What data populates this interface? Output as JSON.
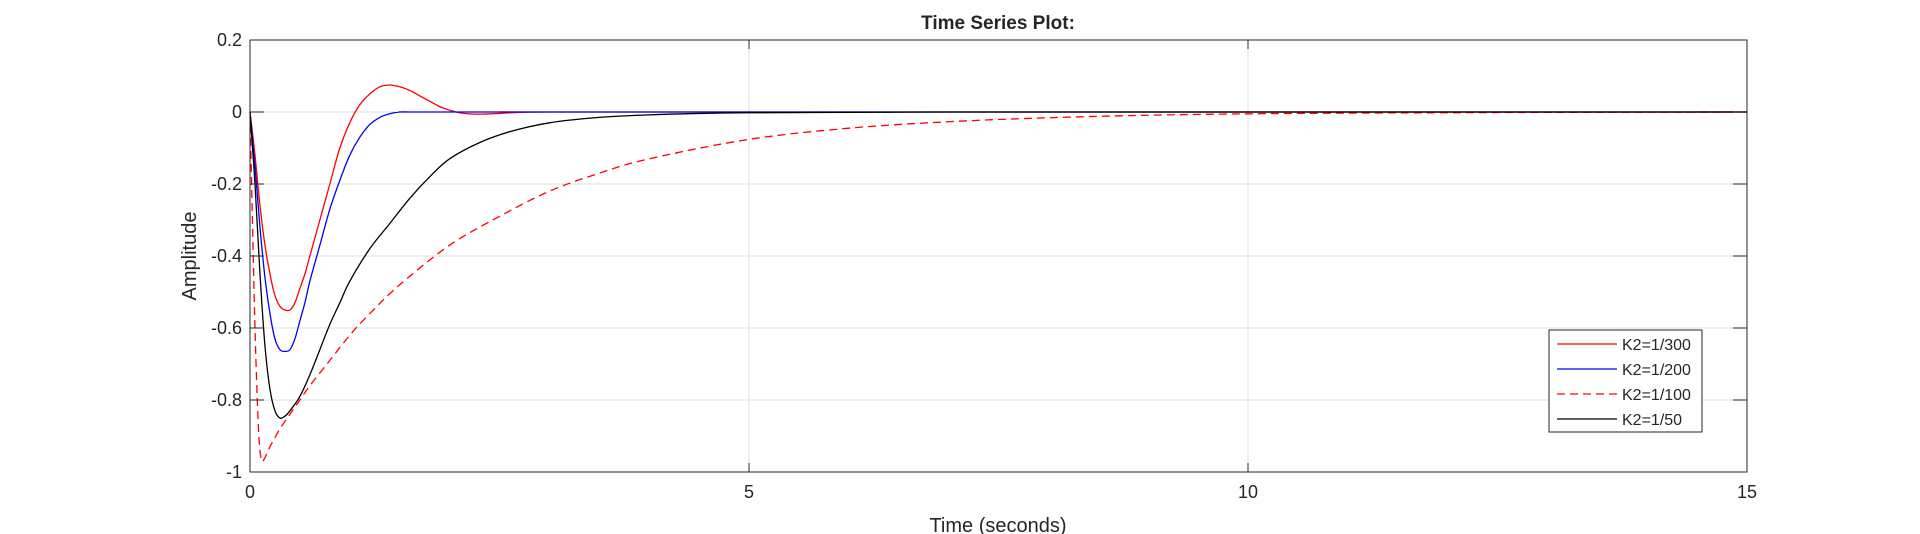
{
  "chart_data": {
    "type": "line",
    "title": "Time Series Plot:",
    "xlabel": "Time (seconds)",
    "ylabel": "Amplitude",
    "xlim": [
      0,
      15
    ],
    "ylim": [
      -1,
      0.2
    ],
    "xticks": [
      0,
      5,
      10,
      15
    ],
    "yticks": [
      0.2,
      0,
      -0.2,
      -0.4,
      -0.6,
      -0.8,
      -1
    ],
    "xtick_labels": [
      "0",
      "5",
      "10",
      "15"
    ],
    "ytick_labels": [
      "0.2",
      "0",
      "-0.2",
      "-0.4",
      "-0.6",
      "-0.8",
      "-1"
    ],
    "grid": true,
    "legend_position": "lower-right",
    "series": [
      {
        "name": "K2=1/300",
        "color": "#ff0000",
        "dash": "solid",
        "x": [
          0,
          0.05,
          0.1,
          0.15,
          0.2,
          0.25,
          0.3,
          0.35,
          0.4,
          0.45,
          0.5,
          0.55,
          0.6,
          0.7,
          0.8,
          0.9,
          1.0,
          1.1,
          1.2,
          1.3,
          1.4,
          1.5,
          1.6,
          1.7,
          1.8,
          1.9,
          2.0,
          2.1,
          2.2,
          2.3,
          2.5,
          2.7,
          3.0,
          3.5,
          15
        ],
        "y": [
          0,
          -0.12,
          -0.26,
          -0.37,
          -0.45,
          -0.51,
          -0.54,
          -0.55,
          -0.55,
          -0.53,
          -0.49,
          -0.45,
          -0.4,
          -0.3,
          -0.2,
          -0.1,
          -0.03,
          0.02,
          0.05,
          0.07,
          0.075,
          0.07,
          0.06,
          0.045,
          0.03,
          0.015,
          0.005,
          -0.002,
          -0.005,
          -0.006,
          -0.004,
          -0.001,
          0,
          0,
          0
        ]
      },
      {
        "name": "K2=1/200",
        "color": "#0000ff",
        "dash": "solid",
        "x": [
          0,
          0.05,
          0.1,
          0.15,
          0.2,
          0.25,
          0.3,
          0.35,
          0.4,
          0.45,
          0.5,
          0.55,
          0.6,
          0.7,
          0.8,
          0.9,
          1.0,
          1.1,
          1.2,
          1.3,
          1.4,
          1.5,
          1.6,
          1.7,
          1.8,
          2.0,
          2.2,
          2.5,
          15
        ],
        "y": [
          0,
          -0.15,
          -0.32,
          -0.46,
          -0.56,
          -0.63,
          -0.66,
          -0.665,
          -0.66,
          -0.63,
          -0.58,
          -0.53,
          -0.47,
          -0.37,
          -0.27,
          -0.19,
          -0.12,
          -0.07,
          -0.035,
          -0.015,
          -0.005,
          0,
          0,
          0,
          0,
          0,
          0,
          0,
          0
        ]
      },
      {
        "name": "K2=1/100",
        "color": "#ff0000",
        "dash": "dashed",
        "x": [
          0,
          0.02,
          0.05,
          0.08,
          0.1,
          0.12,
          0.15,
          0.2,
          0.3,
          0.4,
          0.5,
          0.6,
          0.8,
          1.0,
          1.2,
          1.5,
          2.0,
          2.5,
          3.0,
          3.5,
          4.0,
          5.0,
          6.0,
          7.0,
          8.0,
          9.0,
          10.0,
          11.0,
          12.0,
          13.0,
          15.0
        ],
        "y": [
          0,
          -0.25,
          -0.6,
          -0.85,
          -0.94,
          -0.97,
          -0.96,
          -0.93,
          -0.88,
          -0.84,
          -0.8,
          -0.76,
          -0.69,
          -0.62,
          -0.56,
          -0.48,
          -0.37,
          -0.29,
          -0.22,
          -0.17,
          -0.13,
          -0.076,
          -0.045,
          -0.027,
          -0.016,
          -0.009,
          -0.005,
          -0.003,
          -0.002,
          -0.001,
          0
        ]
      },
      {
        "name": "K2=1/50",
        "color": "#000000",
        "dash": "solid",
        "x": [
          0,
          0.05,
          0.1,
          0.15,
          0.2,
          0.25,
          0.3,
          0.35,
          0.4,
          0.5,
          0.6,
          0.7,
          0.8,
          0.9,
          1.0,
          1.2,
          1.4,
          1.6,
          1.8,
          2.0,
          2.3,
          2.6,
          3.0,
          3.5,
          4.0,
          4.5,
          5.0,
          6.0,
          7.0,
          8.0,
          15
        ],
        "y": [
          0,
          -0.2,
          -0.45,
          -0.65,
          -0.77,
          -0.83,
          -0.85,
          -0.845,
          -0.83,
          -0.79,
          -0.73,
          -0.66,
          -0.59,
          -0.53,
          -0.47,
          -0.38,
          -0.31,
          -0.24,
          -0.18,
          -0.13,
          -0.085,
          -0.055,
          -0.03,
          -0.015,
          -0.008,
          -0.004,
          -0.002,
          -0.001,
          0,
          0,
          0
        ]
      }
    ]
  }
}
